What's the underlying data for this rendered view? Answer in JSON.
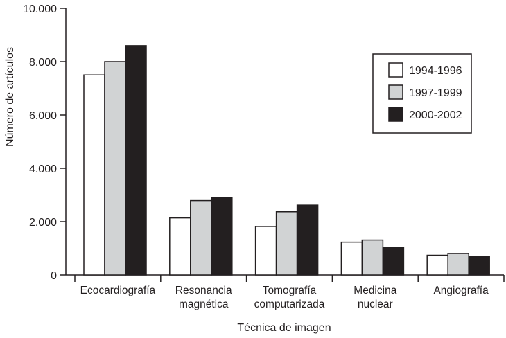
{
  "chart_data": {
    "type": "bar",
    "title": "",
    "xlabel": "Técnica de imagen",
    "ylabel": "Número de artículos",
    "ylim": [
      0,
      10000
    ],
    "yticks": [
      0,
      2000,
      4000,
      6000,
      8000,
      10000
    ],
    "ytick_labels": [
      "0",
      "2.000",
      "4.000",
      "6.000",
      "8.000",
      "10.000"
    ],
    "categories": [
      [
        "Ecocardiografía"
      ],
      [
        "Resonancia",
        "magnética"
      ],
      [
        "Tomografía",
        "computarizada"
      ],
      [
        "Medicina",
        "nuclear"
      ],
      [
        "Angiografía"
      ]
    ],
    "series": [
      {
        "name": "1994-1996",
        "color": "#ffffff",
        "values": [
          7500,
          2140,
          1820,
          1230,
          740
        ]
      },
      {
        "name": "1997-1999",
        "color": "#d1d3d4",
        "values": [
          8000,
          2790,
          2370,
          1310,
          805
        ]
      },
      {
        "name": "2000-2002",
        "color": "#231f20",
        "values": [
          8600,
          2910,
          2620,
          1040,
          690
        ]
      }
    ],
    "legend_position": "top-right",
    "grid": false
  }
}
